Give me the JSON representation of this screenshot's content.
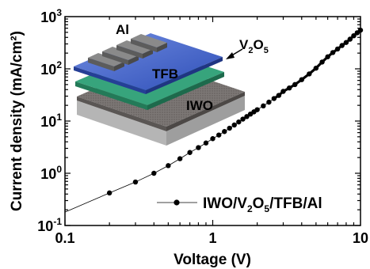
{
  "chart_data": {
    "type": "line",
    "xlabel": "Voltage (V)",
    "ylabel": "Current density (mA/cm²)",
    "xscale": "log",
    "yscale": "log",
    "xlim": [
      0.1,
      10
    ],
    "ylim": [
      0.1,
      1000
    ],
    "x_ticks": [
      {
        "value": 0.1,
        "label": "0.1"
      },
      {
        "value": 1,
        "label": "1"
      },
      {
        "value": 10,
        "label": "10"
      }
    ],
    "y_ticks": [
      {
        "value": 0.1,
        "base": "10",
        "exp": "-1"
      },
      {
        "value": 1,
        "base": "10",
        "exp": "0"
      },
      {
        "value": 10,
        "base": "10",
        "exp": "1"
      },
      {
        "value": 100,
        "base": "10",
        "exp": "2"
      },
      {
        "value": 1000,
        "base": "10",
        "exp": "3"
      }
    ],
    "grid": false,
    "legend_position": "bottom-right",
    "series": [
      {
        "name": "IWO/V2O5/TFB/Al",
        "name_parts": [
          "IWO/V",
          "2",
          "O",
          "5",
          "/TFB/Al"
        ],
        "color": "#000000",
        "marker": "circle",
        "x": [
          0.1,
          0.2,
          0.3,
          0.4,
          0.5,
          0.6,
          0.7,
          0.8,
          0.9,
          1.0,
          1.1,
          1.2,
          1.3,
          1.4,
          1.5,
          1.6,
          1.7,
          1.8,
          1.9,
          2.0,
          2.2,
          2.4,
          2.6,
          2.8,
          3.0,
          3.3,
          3.6,
          4.0,
          4.5,
          5.0,
          5.5,
          6.0,
          6.5,
          7.0,
          7.5,
          8.0,
          8.5,
          9.0,
          9.5,
          10.0
        ],
        "y": [
          0.18,
          0.42,
          0.68,
          1.0,
          1.4,
          1.9,
          2.5,
          3.1,
          3.8,
          4.6,
          5.4,
          6.3,
          7.3,
          8.4,
          9.6,
          10.9,
          12.2,
          13.6,
          15.0,
          16.5,
          19.5,
          23.0,
          27.0,
          31.0,
          37.0,
          43.0,
          50.0,
          62.0,
          80.0,
          103.0,
          135.0,
          170.0,
          205.0,
          240.0,
          280.0,
          320.0,
          370.0,
          430.0,
          490.0,
          550.0
        ],
        "marker_x": [
          0.2,
          0.3,
          0.4,
          0.5,
          0.6,
          0.7,
          0.8,
          0.9,
          1.0,
          1.1,
          1.2,
          1.3,
          1.4,
          1.5,
          1.6,
          1.7,
          1.8,
          1.9,
          2.0,
          2.2,
          2.4,
          2.6,
          2.8,
          3.0,
          3.3,
          3.6,
          4.0,
          4.5,
          5.0,
          5.5,
          6.0,
          6.5,
          7.0,
          7.5,
          8.0,
          8.5,
          9.0,
          9.5,
          10.0
        ]
      }
    ],
    "inset": {
      "labels": {
        "al": "Al",
        "tfb": "TFB",
        "iwo": "IWO",
        "v2o5_parts": [
          "V",
          "2",
          "O",
          "5"
        ]
      },
      "colors": {
        "al_electrode": "#7b7b7b",
        "tfb_layer": "#4f6fd0",
        "v2o5_layer": "#37a47c",
        "iwo_layer": "#8a8583",
        "substrate": "#b9b9b9"
      }
    }
  }
}
